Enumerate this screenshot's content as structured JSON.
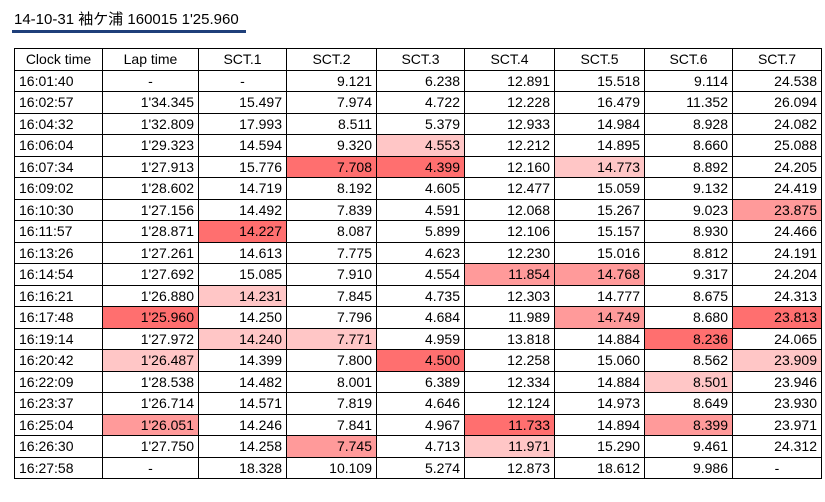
{
  "title": "14-10-31 袖ケ浦 160015 1'25.960",
  "columns": [
    "Clock time",
    "Lap time",
    "SCT.1",
    "SCT.2",
    "SCT.3",
    "SCT.4",
    "SCT.5",
    "SCT.6",
    "SCT.7"
  ],
  "rows": [
    [
      "16:01:40",
      "-",
      "-",
      "9.121",
      "6.238",
      "12.891",
      "15.518",
      "9.114",
      "24.538"
    ],
    [
      "16:02:57",
      "1'34.345",
      "15.497",
      "7.974",
      "4.722",
      "12.228",
      "16.479",
      "11.352",
      "26.094"
    ],
    [
      "16:04:32",
      "1'32.809",
      "17.993",
      "8.511",
      "5.379",
      "12.933",
      "14.984",
      "8.928",
      "24.082"
    ],
    [
      "16:06:04",
      "1'29.323",
      "14.594",
      "9.320",
      "4.553",
      "12.212",
      "14.895",
      "8.660",
      "25.088"
    ],
    [
      "16:07:34",
      "1'27.913",
      "15.776",
      "7.708",
      "4.399",
      "12.160",
      "14.773",
      "8.892",
      "24.205"
    ],
    [
      "16:09:02",
      "1'28.602",
      "14.719",
      "8.192",
      "4.605",
      "12.477",
      "15.059",
      "9.132",
      "24.419"
    ],
    [
      "16:10:30",
      "1'27.156",
      "14.492",
      "7.839",
      "4.591",
      "12.068",
      "15.267",
      "9.023",
      "23.875"
    ],
    [
      "16:11:57",
      "1'28.871",
      "14.227",
      "8.087",
      "5.899",
      "12.106",
      "15.157",
      "8.930",
      "24.466"
    ],
    [
      "16:13:26",
      "1'27.261",
      "14.613",
      "7.775",
      "4.623",
      "12.230",
      "15.016",
      "8.812",
      "24.191"
    ],
    [
      "16:14:54",
      "1'27.692",
      "15.085",
      "7.910",
      "4.554",
      "11.854",
      "14.768",
      "9.317",
      "24.204"
    ],
    [
      "16:16:21",
      "1'26.880",
      "14.231",
      "7.845",
      "4.735",
      "12.303",
      "14.777",
      "8.675",
      "24.313"
    ],
    [
      "16:17:48",
      "1'25.960",
      "14.250",
      "7.796",
      "4.684",
      "11.989",
      "14.749",
      "8.680",
      "23.813"
    ],
    [
      "16:19:14",
      "1'27.972",
      "14.240",
      "7.771",
      "4.959",
      "13.818",
      "14.884",
      "8.236",
      "24.065"
    ],
    [
      "16:20:42",
      "1'26.487",
      "14.399",
      "7.800",
      "4.500",
      "12.258",
      "15.060",
      "8.562",
      "23.909"
    ],
    [
      "16:22:09",
      "1'28.538",
      "14.482",
      "8.001",
      "6.389",
      "12.334",
      "14.884",
      "8.501",
      "23.946"
    ],
    [
      "16:23:37",
      "1'26.714",
      "14.571",
      "7.819",
      "4.646",
      "12.124",
      "14.973",
      "8.649",
      "23.930"
    ],
    [
      "16:25:04",
      "1'26.051",
      "14.246",
      "7.841",
      "4.967",
      "11.733",
      "14.894",
      "8.399",
      "23.971"
    ],
    [
      "16:26:30",
      "1'27.750",
      "14.258",
      "7.745",
      "4.713",
      "11.971",
      "15.290",
      "9.461",
      "24.312"
    ],
    [
      "16:27:58",
      "-",
      "18.328",
      "10.109",
      "5.274",
      "12.873",
      "18.612",
      "9.986",
      "-"
    ]
  ],
  "highlights": [
    [
      0,
      0,
      0,
      0,
      0,
      0,
      0,
      0,
      0
    ],
    [
      0,
      0,
      0,
      0,
      0,
      0,
      0,
      0,
      0
    ],
    [
      0,
      0,
      0,
      0,
      0,
      0,
      0,
      0,
      0
    ],
    [
      0,
      0,
      0,
      0,
      1,
      0,
      0,
      0,
      0
    ],
    [
      0,
      0,
      0,
      3,
      3,
      0,
      1,
      0,
      0
    ],
    [
      0,
      0,
      0,
      0,
      0,
      0,
      0,
      0,
      0
    ],
    [
      0,
      0,
      0,
      0,
      0,
      0,
      0,
      0,
      2
    ],
    [
      0,
      0,
      3,
      0,
      0,
      0,
      0,
      0,
      0
    ],
    [
      0,
      0,
      0,
      0,
      0,
      0,
      0,
      0,
      0
    ],
    [
      0,
      0,
      0,
      0,
      0,
      2,
      2,
      0,
      0
    ],
    [
      0,
      0,
      1,
      0,
      0,
      0,
      0,
      0,
      0
    ],
    [
      0,
      3,
      0,
      0,
      0,
      0,
      2,
      0,
      3
    ],
    [
      0,
      0,
      1,
      1,
      0,
      0,
      0,
      3,
      0
    ],
    [
      0,
      1,
      0,
      0,
      3,
      0,
      0,
      0,
      1
    ],
    [
      0,
      0,
      0,
      0,
      0,
      0,
      0,
      1,
      0
    ],
    [
      0,
      0,
      0,
      0,
      0,
      0,
      0,
      0,
      0
    ],
    [
      0,
      2,
      0,
      0,
      0,
      3,
      0,
      2,
      0
    ],
    [
      0,
      0,
      0,
      2,
      0,
      1,
      0,
      0,
      0
    ],
    [
      0,
      0,
      0,
      0,
      0,
      0,
      0,
      0,
      0
    ]
  ],
  "highlight_colors": {
    "1": "#ffc6c6",
    "2": "#ff9a9a",
    "3": "#ff6f6f"
  }
}
